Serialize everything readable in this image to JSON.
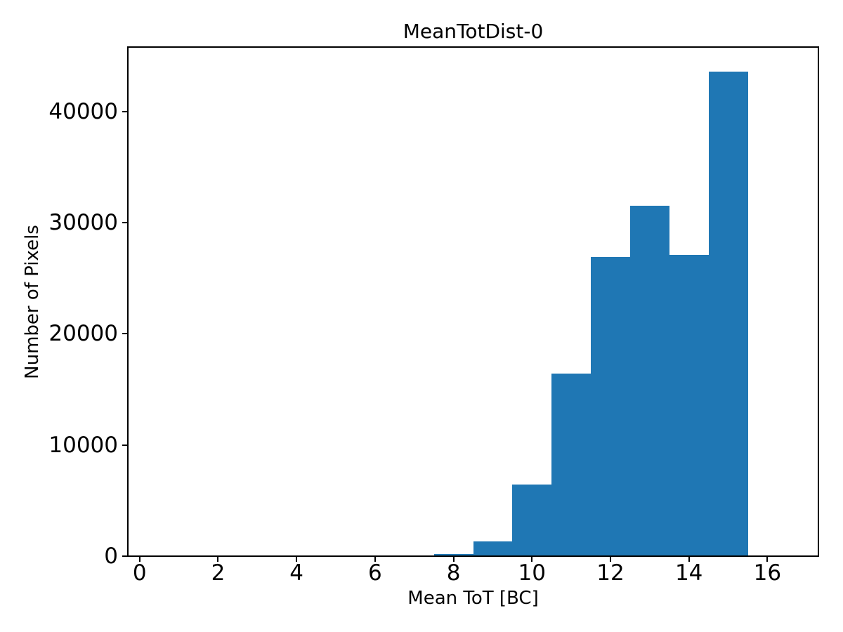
{
  "chart_data": {
    "type": "bar",
    "subtype": "histogram",
    "title": "MeanTotDist-0",
    "xlabel": "Mean ToT [BC]",
    "ylabel": "Number of Pixels",
    "xlim": [
      -0.3,
      17.3
    ],
    "ylim": [
      0,
      45780
    ],
    "x_ticks": [
      0,
      2,
      4,
      6,
      8,
      10,
      12,
      14,
      16
    ],
    "y_ticks": [
      0,
      10000,
      20000,
      30000,
      40000
    ],
    "grid": false,
    "legend": "none",
    "bar_color": "#1f77b4",
    "axis_color": "#000000",
    "background_color": "#ffffff",
    "bins": [
      {
        "x0": 7.5,
        "x1": 8.5,
        "count": 180
      },
      {
        "x0": 8.5,
        "x1": 9.5,
        "count": 1350
      },
      {
        "x0": 9.5,
        "x1": 10.5,
        "count": 6440
      },
      {
        "x0": 10.5,
        "x1": 11.5,
        "count": 16420
      },
      {
        "x0": 11.5,
        "x1": 12.5,
        "count": 26900
      },
      {
        "x0": 12.5,
        "x1": 13.5,
        "count": 31510
      },
      {
        "x0": 13.5,
        "x1": 14.5,
        "count": 27090
      },
      {
        "x0": 14.5,
        "x1": 15.5,
        "count": 43600
      }
    ]
  }
}
